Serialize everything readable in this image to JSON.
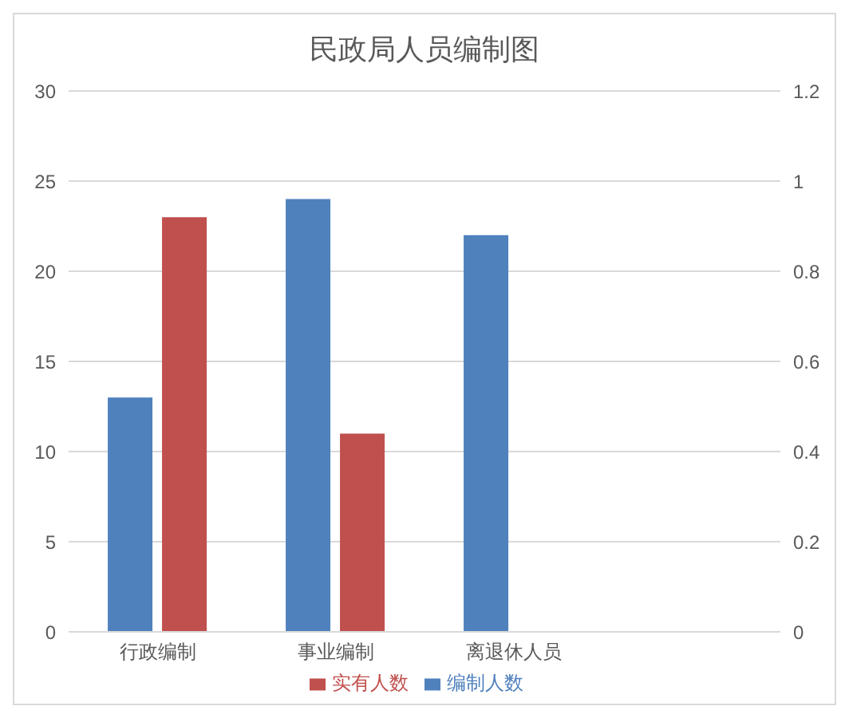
{
  "chart_data": {
    "type": "bar",
    "title": "民政局人员编制图",
    "categories": [
      "行政编制",
      "事业编制",
      "离退休人员",
      null
    ],
    "series": [
      {
        "name": "编制人数",
        "color": "#4f81bd",
        "values": [
          13,
          24,
          22,
          null
        ]
      },
      {
        "name": "实有人数",
        "color": "#c0504d",
        "values": [
          23,
          11,
          null,
          null
        ]
      }
    ],
    "ylim": [
      0,
      30
    ],
    "yticks": [
      0,
      5,
      10,
      15,
      20,
      25,
      30
    ],
    "y2lim": [
      0,
      1.2
    ],
    "y2ticks": [
      0,
      0.2,
      0.4,
      0.6,
      0.8,
      1,
      1.2
    ],
    "grid": "y",
    "legend": "bottom"
  }
}
